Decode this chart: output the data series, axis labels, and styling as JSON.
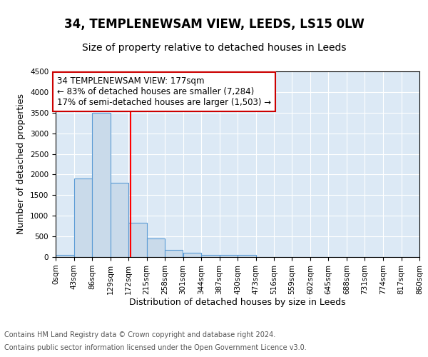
{
  "title": "34, TEMPLENEWSAM VIEW, LEEDS, LS15 0LW",
  "subtitle": "Size of property relative to detached houses in Leeds",
  "xlabel": "Distribution of detached houses by size in Leeds",
  "ylabel": "Number of detached properties",
  "bin_edges": [
    0,
    43,
    86,
    129,
    172,
    215,
    258,
    301,
    344,
    387,
    430,
    473,
    516,
    559,
    602,
    645,
    688,
    731,
    774,
    817,
    860
  ],
  "bar_heights": [
    50,
    1900,
    3500,
    1800,
    830,
    450,
    170,
    100,
    60,
    55,
    50,
    0,
    0,
    0,
    0,
    0,
    0,
    0,
    0,
    0
  ],
  "bar_color": "#c9daea",
  "bar_edge_color": "#5b9bd5",
  "grid_color": "#ffffff",
  "bg_color": "#dce9f5",
  "fig_bg_color": "#ffffff",
  "red_line_x": 177,
  "annotation_text": "34 TEMPLENEWSAM VIEW: 177sqm\n← 83% of detached houses are smaller (7,284)\n17% of semi-detached houses are larger (1,503) →",
  "annotation_box_color": "#ffffff",
  "annotation_box_edge_color": "#cc0000",
  "ylim": [
    0,
    4500
  ],
  "yticks": [
    0,
    500,
    1000,
    1500,
    2000,
    2500,
    3000,
    3500,
    4000,
    4500
  ],
  "footer_line1": "Contains HM Land Registry data © Crown copyright and database right 2024.",
  "footer_line2": "Contains public sector information licensed under the Open Government Licence v3.0.",
  "title_fontsize": 12,
  "subtitle_fontsize": 10,
  "tick_fontsize": 7.5,
  "label_fontsize": 9,
  "annotation_fontsize": 8.5,
  "footer_fontsize": 7
}
